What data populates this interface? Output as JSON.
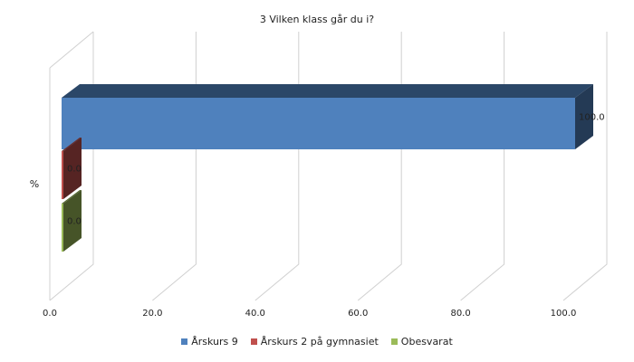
{
  "chart_data": {
    "type": "bar",
    "orientation": "horizontal",
    "three_d": true,
    "title": "3 Vilken klass går du i?",
    "ylabel": "%",
    "xlabel": "",
    "xlim": [
      0,
      100
    ],
    "x_ticks": [
      "0.0",
      "20.0",
      "40.0",
      "60.0",
      "80.0",
      "100.0"
    ],
    "grid": true,
    "legend_position": "bottom",
    "series": [
      {
        "name": "Årskurs 9",
        "value": 100.0,
        "label": "100.0",
        "color": "#4f81bd"
      },
      {
        "name": "Årskurs 2 på gymnasiet",
        "value": 0.0,
        "label": "0.0",
        "color": "#c0504d"
      },
      {
        "name": "Obesvarat",
        "value": 0.0,
        "label": "0.0",
        "color": "#9bbb59"
      }
    ]
  }
}
